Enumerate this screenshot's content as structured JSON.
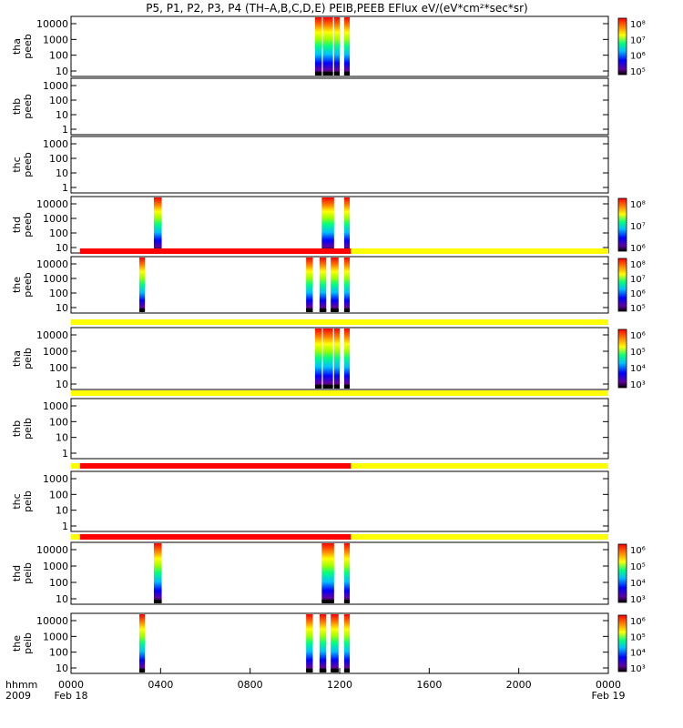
{
  "title": "P5, P1, P2, P3, P4 (TH–A,B,C,D,E) PEIB,PEEB EFlux eV/(eV*cm²*sec*sr)",
  "x_axis": {
    "label_top": "hhmm",
    "label_bottom": "2009",
    "ticks": [
      "0000",
      "0400",
      "0800",
      "1200",
      "1600",
      "2000",
      "0000"
    ],
    "tick_hours": [
      0,
      4,
      8,
      12,
      16,
      20,
      24
    ],
    "dates": [
      {
        "text": "Feb 18",
        "hour": 0
      },
      {
        "text": "Feb 19",
        "hour": 24
      }
    ]
  },
  "colors": {
    "mode_red": "#ff0000",
    "mode_yellow": "#ffff00",
    "rainbow": [
      "#000000",
      "#6000a0",
      "#0000ff",
      "#00c0ff",
      "#00ff80",
      "#a0ff00",
      "#ffff00",
      "#ff8000",
      "#ff0000"
    ]
  },
  "chart_data": [
    {
      "type": "heatmap",
      "panel": "thaPeeb",
      "ylabel": [
        "tha",
        "peeb"
      ],
      "yticks": [
        "10000",
        "1000",
        "100",
        "10"
      ],
      "colorbar": [
        "10⁸",
        "10⁷",
        "10⁶",
        "10⁵"
      ],
      "data_hours": [
        [
          10.9,
          11.2
        ],
        [
          11.25,
          11.7
        ],
        [
          11.75,
          12.0
        ],
        [
          12.2,
          12.45
        ]
      ],
      "mode_bar": []
    },
    {
      "type": "heatmap",
      "panel": "thbPeeb",
      "ylabel": [
        "thb",
        "peeb"
      ],
      "yticks": [
        "1000",
        "100",
        "10",
        "1"
      ],
      "colorbar": [],
      "data_hours": [],
      "mode_bar": []
    },
    {
      "type": "heatmap",
      "panel": "thcPeeb",
      "ylabel": [
        "thc",
        "peeb"
      ],
      "yticks": [
        "1000",
        "100",
        "10",
        "1"
      ],
      "colorbar": [],
      "data_hours": [],
      "mode_bar": []
    },
    {
      "type": "heatmap",
      "panel": "thdPeeb",
      "ylabel": [
        "thd",
        "peeb"
      ],
      "yticks": [
        "10000",
        "1000",
        "100",
        "10"
      ],
      "colorbar": [
        "10⁸",
        "10⁷",
        "10⁶"
      ],
      "data_hours": [
        [
          3.7,
          4.05
        ],
        [
          11.2,
          11.75
        ],
        [
          12.2,
          12.45
        ]
      ],
      "mode_bar": []
    },
    {
      "type": "heatmap",
      "panel": "thePeeb",
      "ylabel": [
        "the",
        "peeb"
      ],
      "yticks": [
        "10000",
        "1000",
        "100",
        "10"
      ],
      "colorbar": [
        "10⁸",
        "10⁷",
        "10⁶",
        "10⁵"
      ],
      "data_hours": [
        [
          3.05,
          3.3
        ],
        [
          10.5,
          10.8
        ],
        [
          11.1,
          11.4
        ],
        [
          11.6,
          11.95
        ],
        [
          12.2,
          12.45
        ]
      ],
      "mode_bar": [
        [
          0.4,
          12.5,
          "red"
        ],
        [
          12.5,
          24,
          "yellow"
        ]
      ]
    },
    {
      "type": "heatmap",
      "panel": "thaPeib",
      "ylabel": [
        "tha",
        "peib"
      ],
      "yticks": [
        "10000",
        "1000",
        "100",
        "10"
      ],
      "colorbar": [
        "10⁶",
        "10⁵",
        "10⁴",
        "10³"
      ],
      "data_hours": [
        [
          10.9,
          11.2
        ],
        [
          11.25,
          11.7
        ],
        [
          11.75,
          12.0
        ],
        [
          12.2,
          12.45
        ]
      ],
      "mode_bar": [
        [
          0,
          24,
          "yellow"
        ]
      ]
    },
    {
      "type": "heatmap",
      "panel": "thbPeib",
      "ylabel": [
        "thb",
        "peib"
      ],
      "yticks": [
        "1000",
        "100",
        "10",
        "1"
      ],
      "colorbar": [],
      "data_hours": [],
      "mode_bar": [
        [
          0,
          24,
          "yellow"
        ]
      ]
    },
    {
      "type": "heatmap",
      "panel": "thcPeib",
      "ylabel": [
        "thc",
        "peib"
      ],
      "yticks": [
        "1000",
        "100",
        "10",
        "1"
      ],
      "colorbar": [],
      "data_hours": [],
      "mode_bar": [
        [
          0,
          0.4,
          "yellow"
        ],
        [
          0.4,
          12.5,
          "red"
        ],
        [
          12.5,
          24,
          "yellow"
        ]
      ]
    },
    {
      "type": "heatmap",
      "panel": "thdPeib",
      "ylabel": [
        "thd",
        "peib"
      ],
      "yticks": [
        "10000",
        "1000",
        "100",
        "10"
      ],
      "colorbar": [
        "10⁶",
        "10⁵",
        "10⁴",
        "10³"
      ],
      "data_hours": [
        [
          3.7,
          4.05
        ],
        [
          11.2,
          11.75
        ],
        [
          12.2,
          12.45
        ]
      ],
      "mode_bar": [
        [
          0,
          0.4,
          "yellow"
        ],
        [
          0.4,
          12.5,
          "red"
        ],
        [
          12.5,
          24,
          "yellow"
        ]
      ]
    },
    {
      "type": "heatmap",
      "panel": "thePeib",
      "ylabel": [
        "the",
        "peib"
      ],
      "yticks": [
        "10000",
        "1000",
        "100",
        "10"
      ],
      "colorbar": [
        "10⁶",
        "10⁵",
        "10⁴",
        "10³"
      ],
      "data_hours": [
        [
          3.05,
          3.3
        ],
        [
          10.5,
          10.8
        ],
        [
          11.1,
          11.4
        ],
        [
          11.6,
          11.95
        ],
        [
          12.2,
          12.45
        ]
      ],
      "mode_bar": []
    }
  ]
}
